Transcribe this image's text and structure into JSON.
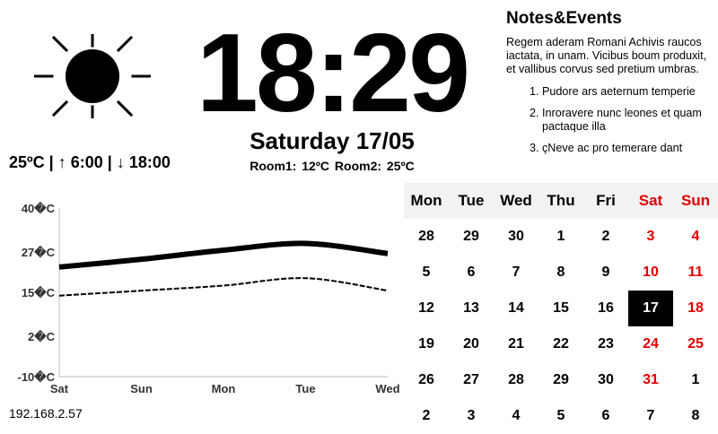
{
  "clock": {
    "time": "18:29",
    "date": "Saturday 17/05",
    "rooms": "Room1: 12ºC  Room2: 25ºC"
  },
  "weather": {
    "icon": "sun-icon",
    "temp": "25ºC",
    "sep": "|",
    "sunrise_arrow": "↑",
    "sunrise": "6:00",
    "sunset_arrow": "↓",
    "sunset": "18:00"
  },
  "notes": {
    "title": "Notes&Events",
    "body": "Regem aderam Romani Achivis raucos iactata, in unam. Vicibus boum produxit, et vallibus corvus sed pretium umbras.",
    "items": [
      "Pudore ars aeternum temperie",
      "Inroravere nunc leones et quam pactaque illa",
      "çNeve ac pro temerare dant"
    ]
  },
  "ip": "192.168.2.57",
  "chart_data": {
    "type": "line",
    "x": [
      "Sat",
      "Sun",
      "Mon",
      "Tue",
      "Wed"
    ],
    "ytick_labels": [
      "40�C",
      "27�C",
      "15�C",
      "2�C",
      "-10�C"
    ],
    "yticks": [
      40,
      27,
      15,
      2,
      -10
    ],
    "ylim": [
      -10,
      40
    ],
    "grid": false,
    "series": [
      {
        "style": "solid-thick",
        "values": [
          22.5,
          24.8,
          27.5,
          29.5,
          26.5
        ]
      },
      {
        "style": "dashed",
        "values": [
          14,
          15.5,
          17,
          19.2,
          15.5
        ]
      }
    ]
  },
  "calendar": {
    "headers": [
      "Mon",
      "Tue",
      "Wed",
      "Thu",
      "Fri",
      "Sat",
      "Sun"
    ],
    "weekend_color": "#e00000",
    "days": [
      [
        "28",
        "29",
        "30",
        "1",
        "2",
        "3",
        "4"
      ],
      [
        "5",
        "6",
        "7",
        "8",
        "9",
        "10",
        "11"
      ],
      [
        "12",
        "13",
        "14",
        "15",
        "16",
        "17",
        "18"
      ],
      [
        "19",
        "20",
        "21",
        "22",
        "23",
        "24",
        "25"
      ],
      [
        "26",
        "27",
        "28",
        "29",
        "30",
        "31",
        "1"
      ],
      [
        "2",
        "3",
        "4",
        "5",
        "6",
        "7",
        "8"
      ]
    ],
    "red_cells": [
      "0-5",
      "0-6",
      "1-5",
      "1-6",
      "2-6",
      "3-5",
      "3-6",
      "4-5"
    ],
    "today": "2-5"
  }
}
